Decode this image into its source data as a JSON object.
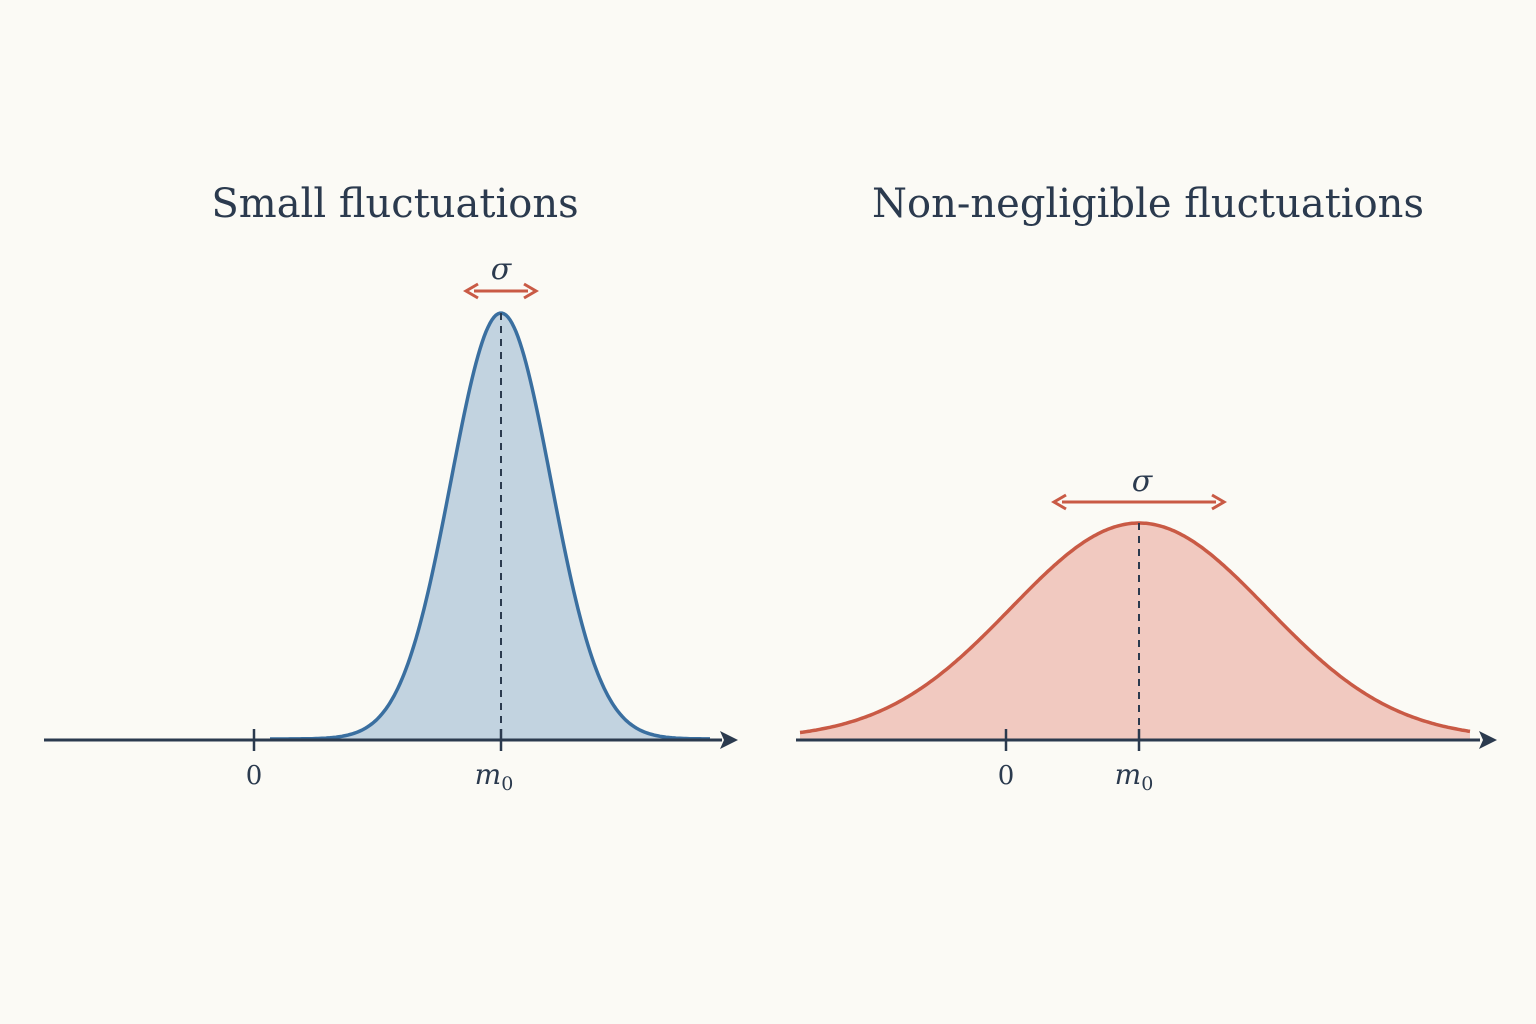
{
  "panels": [
    {
      "title": "Small fluctuations",
      "tick_zero_label": "0",
      "mean_label": "m",
      "mean_subscript": "0",
      "sigma_label": "σ",
      "curve_color": "#3a6fa0",
      "fill_color": "#c2d3e0",
      "sigma_color": "#c95a45",
      "relative_width": "narrow",
      "relative_height": "tall"
    },
    {
      "title": "Non-negligible fluctuations",
      "tick_zero_label": "0",
      "mean_label": "m",
      "mean_subscript": "0",
      "sigma_label": "σ",
      "curve_color": "#c95a45",
      "fill_color": "#f1c9c0",
      "sigma_color": "#c95a45",
      "relative_width": "wide",
      "relative_height": "short"
    }
  ],
  "axis_color": "#2b3a4e",
  "background_color": "#fbfaf5"
}
